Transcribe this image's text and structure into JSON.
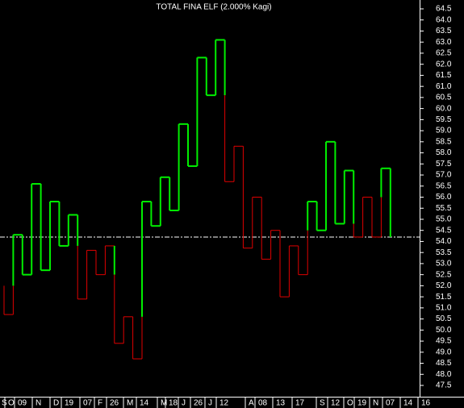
{
  "chart_data": {
    "type": "kagi",
    "title": "TOTAL FINA ELF (2.000% Kagi)",
    "columns": [
      {
        "values": [
          52.0,
          50.7
        ],
        "colors": [
          "#e00000"
        ]
      },
      {
        "values": [
          50.7,
          52.0,
          54.3
        ],
        "colors": [
          "#e00000",
          "#00ee00"
        ]
      },
      {
        "values": [
          54.3,
          52.5
        ],
        "colors": [
          "#00ee00"
        ]
      },
      {
        "values": [
          52.5,
          56.6
        ],
        "colors": [
          "#00ee00"
        ]
      },
      {
        "values": [
          56.6,
          52.7
        ],
        "colors": [
          "#00ee00"
        ]
      },
      {
        "values": [
          52.7,
          55.8
        ],
        "colors": [
          "#00ee00"
        ]
      },
      {
        "values": [
          55.8,
          53.8
        ],
        "colors": [
          "#00ee00"
        ]
      },
      {
        "values": [
          53.8,
          55.2
        ],
        "colors": [
          "#00ee00"
        ]
      },
      {
        "values": [
          55.2,
          53.8,
          51.4
        ],
        "colors": [
          "#00ee00",
          "#e00000"
        ]
      },
      {
        "values": [
          51.4,
          53.6
        ],
        "colors": [
          "#e00000"
        ]
      },
      {
        "values": [
          53.6,
          52.5
        ],
        "colors": [
          "#e00000"
        ]
      },
      {
        "values": [
          52.5,
          53.8
        ],
        "colors": [
          "#e00000"
        ]
      },
      {
        "values": [
          53.8,
          52.5,
          49.4
        ],
        "colors": [
          "#00ee00",
          "#e00000"
        ]
      },
      {
        "values": [
          49.4,
          50.6
        ],
        "colors": [
          "#e00000"
        ]
      },
      {
        "values": [
          50.6,
          48.7
        ],
        "colors": [
          "#e00000"
        ]
      },
      {
        "values": [
          48.7,
          50.6,
          55.8
        ],
        "colors": [
          "#e00000",
          "#00ee00"
        ]
      },
      {
        "values": [
          55.8,
          54.7
        ],
        "colors": [
          "#00ee00"
        ]
      },
      {
        "values": [
          54.7,
          56.9
        ],
        "colors": [
          "#00ee00"
        ]
      },
      {
        "values": [
          56.9,
          55.4
        ],
        "colors": [
          "#00ee00"
        ]
      },
      {
        "values": [
          55.4,
          59.3
        ],
        "colors": [
          "#00ee00"
        ]
      },
      {
        "values": [
          59.3,
          57.4
        ],
        "colors": [
          "#00ee00"
        ]
      },
      {
        "values": [
          57.4,
          62.3
        ],
        "colors": [
          "#00ee00"
        ]
      },
      {
        "values": [
          62.3,
          60.6
        ],
        "colors": [
          "#00ee00"
        ]
      },
      {
        "values": [
          60.6,
          63.1
        ],
        "colors": [
          "#00ee00"
        ]
      },
      {
        "values": [
          63.1,
          60.6,
          56.7
        ],
        "colors": [
          "#00ee00",
          "#e00000"
        ]
      },
      {
        "values": [
          56.7,
          58.3
        ],
        "colors": [
          "#e00000"
        ]
      },
      {
        "values": [
          58.3,
          53.7
        ],
        "colors": [
          "#e00000"
        ]
      },
      {
        "values": [
          53.7,
          56.0
        ],
        "colors": [
          "#e00000"
        ]
      },
      {
        "values": [
          56.0,
          53.2
        ],
        "colors": [
          "#e00000"
        ]
      },
      {
        "values": [
          53.2,
          54.5
        ],
        "colors": [
          "#e00000"
        ]
      },
      {
        "values": [
          54.5,
          51.5
        ],
        "colors": [
          "#e00000"
        ]
      },
      {
        "values": [
          51.5,
          53.8
        ],
        "colors": [
          "#e00000"
        ]
      },
      {
        "values": [
          53.8,
          52.5
        ],
        "colors": [
          "#e00000"
        ]
      },
      {
        "values": [
          52.5,
          54.5,
          55.8
        ],
        "colors": [
          "#e00000",
          "#00ee00"
        ]
      },
      {
        "values": [
          55.8,
          54.5
        ],
        "colors": [
          "#00ee00"
        ]
      },
      {
        "values": [
          54.5,
          58.5
        ],
        "colors": [
          "#00ee00"
        ]
      },
      {
        "values": [
          58.5,
          54.8
        ],
        "colors": [
          "#00ee00"
        ]
      },
      {
        "values": [
          54.8,
          57.2
        ],
        "colors": [
          "#00ee00"
        ]
      },
      {
        "values": [
          57.2,
          54.8,
          54.2
        ],
        "colors": [
          "#00ee00",
          "#e00000"
        ]
      },
      {
        "values": [
          54.2,
          56.0
        ],
        "colors": [
          "#e00000"
        ]
      },
      {
        "values": [
          56.0,
          54.2
        ],
        "colors": [
          "#e00000"
        ]
      },
      {
        "values": [
          54.2,
          56.0,
          57.3
        ],
        "colors": [
          "#e00000",
          "#00ee00"
        ]
      },
      {
        "values": [
          57.3,
          54.2
        ],
        "colors": [
          "#00ee00"
        ]
      }
    ],
    "last": 54.2,
    "ylim": [
      47.0,
      65.0
    ],
    "yticks": [
      {
        "value": 47.5,
        "label": "47.5"
      },
      {
        "value": 48,
        "label": "48.0"
      },
      48.5,
      {
        "value": 49,
        "label": "49.0"
      },
      49.5,
      {
        "value": 50,
        "label": "50.0"
      },
      50.5,
      {
        "value": 51,
        "label": "51.0"
      },
      51.5,
      {
        "value": 52,
        "label": "52.0"
      },
      52.5,
      {
        "value": 53,
        "label": "53.0"
      },
      53.5,
      {
        "value": 54,
        "label": "54.0"
      },
      54.5,
      {
        "value": 55,
        "label": "55.0"
      },
      55.5,
      {
        "value": 56,
        "label": "56.0"
      },
      56.5,
      {
        "value": 57,
        "label": "57.0"
      },
      57.5,
      {
        "value": 58,
        "label": "58.0"
      },
      58.5,
      {
        "value": 59,
        "label": "59.0"
      },
      59.5,
      {
        "value": 60,
        "label": "60.0"
      },
      60.5,
      {
        "value": 61,
        "label": "61.0"
      },
      61.5,
      {
        "value": 62,
        "label": "62.0"
      },
      62.5,
      {
        "value": 63,
        "label": "63.0"
      },
      63.5,
      {
        "value": 64,
        "label": "64.0"
      },
      64.5
    ],
    "x_labels": [
      "S",
      "O",
      "09",
      "N",
      "D",
      "19",
      "07",
      "F",
      "26",
      "M",
      "14",
      "M",
      "18",
      "J",
      "26",
      "J",
      "12",
      "A",
      "08",
      "13",
      "17",
      "S",
      "12",
      "O",
      "19",
      "N",
      "07",
      "14",
      "16"
    ]
  }
}
